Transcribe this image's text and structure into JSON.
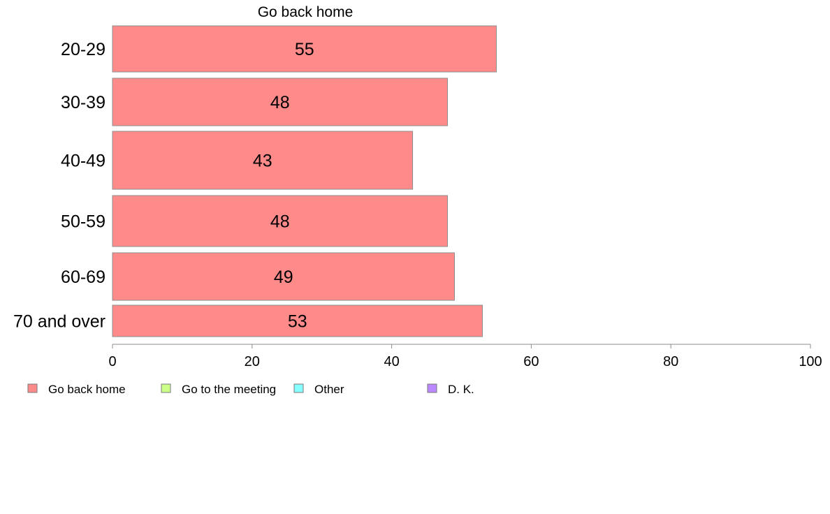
{
  "chart_data": {
    "type": "bar",
    "orientation": "horizontal",
    "title": "Go back home",
    "categories": [
      "20-29",
      "30-39",
      "40-49",
      "50-59",
      "60-69",
      "70 and over"
    ],
    "series": [
      {
        "name": "Go back home",
        "values": [
          55,
          48,
          43,
          48,
          49,
          53
        ]
      }
    ],
    "data_labels": [
      "55",
      "48",
      "43",
      "48",
      "49",
      "53"
    ],
    "xlim": [
      0,
      100
    ],
    "xticks": [
      "0",
      "20",
      "40",
      "60",
      "80",
      "100"
    ],
    "grid": false,
    "legend_position": "bottom-left",
    "legend": [
      {
        "label": "Go back home",
        "color": "#ff8a8a"
      },
      {
        "label": "Go to the meeting",
        "color": "#ccff88"
      },
      {
        "label": "Other",
        "color": "#88ffff"
      },
      {
        "label": "D. K.",
        "color": "#bb88ff"
      }
    ],
    "bar_color": "#ff8a8a",
    "bar_border_color": "#8c8c8c"
  }
}
